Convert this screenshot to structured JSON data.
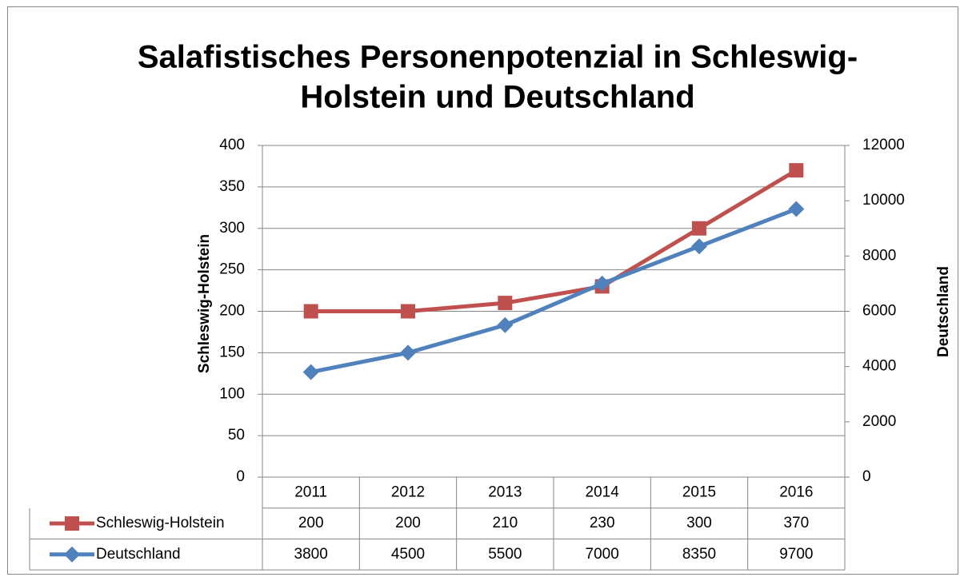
{
  "chart_data": {
    "type": "line",
    "title": [
      "Salafistisches Personenpotenzial in Schleswig-",
      "Holstein und Deutschland"
    ],
    "ylabel": "Schleswig-Holstein",
    "y2label": "Deutschland",
    "categories": [
      "2011",
      "2012",
      "2013",
      "2014",
      "2015",
      "2016"
    ],
    "series": [
      {
        "name": "Schleswig-Holstein",
        "color": "#c0504d",
        "marker": "square",
        "values": [
          200,
          200,
          210,
          230,
          300,
          370
        ]
      },
      {
        "name": "Deutschland",
        "color": "#4f81bd",
        "marker": "diamond",
        "axis": "y2",
        "values": [
          3800,
          4500,
          5500,
          7000,
          8350,
          9700
        ]
      }
    ],
    "ylim": [
      0,
      400
    ],
    "yticks": [
      0,
      50,
      100,
      150,
      200,
      250,
      300,
      350,
      400
    ],
    "y2lim": [
      0,
      12000
    ],
    "y2ticks": [
      0,
      2000,
      4000,
      6000,
      8000,
      10000,
      12000
    ],
    "grid": true,
    "data_table": true
  }
}
